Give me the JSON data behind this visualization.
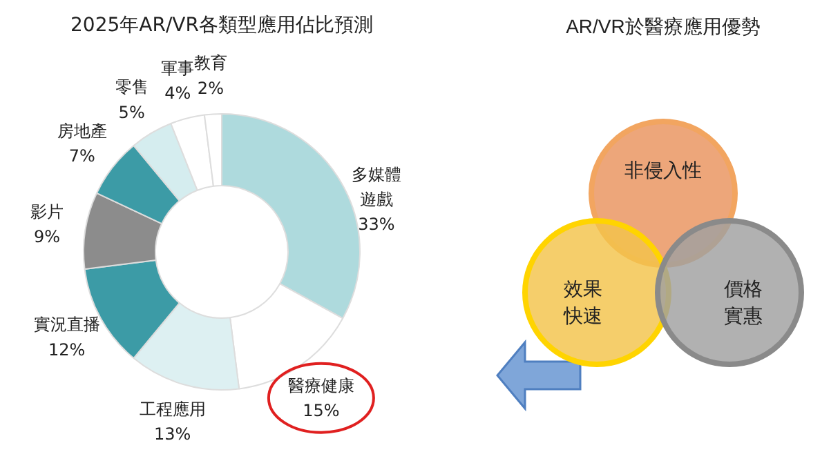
{
  "chart_data": [
    {
      "type": "donut",
      "title": "2025年AR/VR各類型應用佔比預測",
      "categories": [
        "多媒體遊戲",
        "醫療健康",
        "工程應用",
        "實況直播",
        "影片",
        "房地產",
        "零售",
        "軍事",
        "教育"
      ],
      "values": [
        33,
        15,
        13,
        12,
        9,
        7,
        5,
        4,
        2
      ],
      "value_labels": [
        "33%",
        "15%",
        "13%",
        "12%",
        "9%",
        "7%",
        "5%",
        "4%",
        "2%"
      ],
      "colors": [
        "#aedadd",
        "#ffffff",
        "#ddf0f2",
        "#3c9ba6",
        "#8c8c8c",
        "#3c9ba6",
        "#d5edef",
        "#ffffff",
        "#ffffff"
      ]
    },
    {
      "type": "other",
      "title": "AR/VR於醫療應用優勢",
      "annotations": [
        "非侵入性",
        "效果快速",
        "價格實惠"
      ]
    }
  ]
}
